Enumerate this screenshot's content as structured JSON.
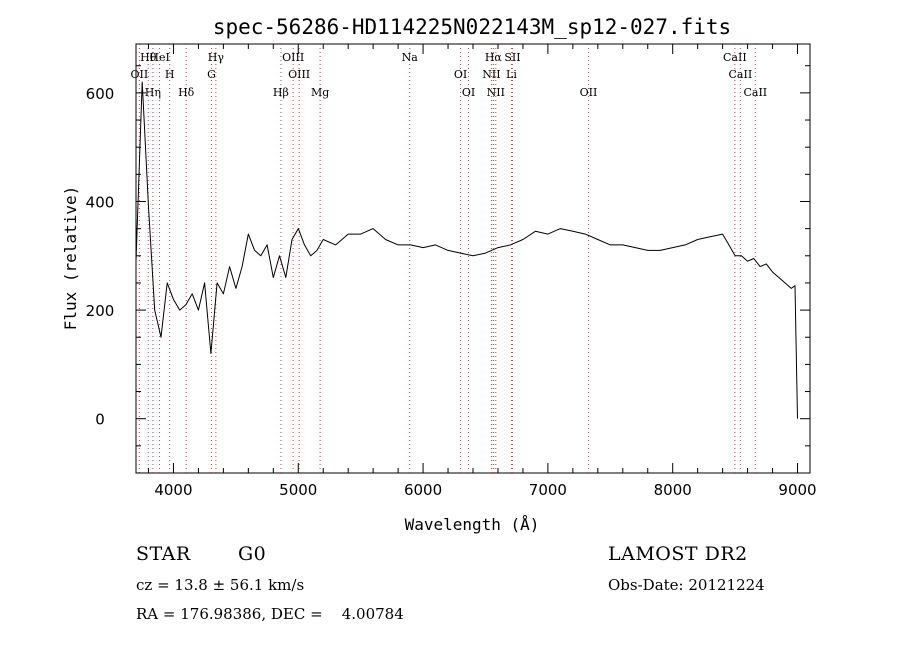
{
  "chart_data": {
    "type": "line",
    "title": "spec-56286-HD114225N022143M_sp12-027.fits",
    "xlabel": "Wavelength (Å)",
    "ylabel": "Flux (relative)",
    "xlim": [
      3700,
      9100
    ],
    "ylim": [
      -100,
      690
    ],
    "x_ticks": [
      4000,
      5000,
      6000,
      7000,
      8000,
      9000
    ],
    "x_tick_labels": [
      "4000",
      "5000",
      "6000",
      "7000",
      "8000",
      "9000"
    ],
    "y_ticks": [
      0,
      200,
      400,
      600
    ],
    "y_tick_labels": [
      "0",
      "200",
      "400",
      "600"
    ],
    "grid": false,
    "series": [
      {
        "color": "#000000",
        "x": [
          3700,
          3750,
          3800,
          3850,
          3900,
          3950,
          4000,
          4050,
          4100,
          4150,
          4200,
          4250,
          4300,
          4350,
          4400,
          4450,
          4500,
          4550,
          4600,
          4650,
          4700,
          4750,
          4800,
          4850,
          4900,
          4950,
          5000,
          5050,
          5100,
          5150,
          5200,
          5300,
          5400,
          5500,
          5600,
          5700,
          5800,
          5900,
          6000,
          6100,
          6200,
          6300,
          6400,
          6500,
          6600,
          6700,
          6800,
          6900,
          7000,
          7100,
          7200,
          7300,
          7400,
          7500,
          7600,
          7700,
          7800,
          7900,
          8000,
          8100,
          8200,
          8300,
          8400,
          8450,
          8500,
          8550,
          8600,
          8650,
          8700,
          8750,
          8800,
          8850,
          8900,
          8950,
          8980,
          9000
        ],
        "y": [
          290,
          620,
          390,
          200,
          150,
          250,
          220,
          200,
          210,
          230,
          200,
          250,
          120,
          250,
          230,
          280,
          240,
          280,
          340,
          310,
          300,
          320,
          260,
          300,
          260,
          330,
          350,
          320,
          300,
          310,
          330,
          320,
          340,
          340,
          350,
          330,
          320,
          320,
          315,
          320,
          310,
          305,
          300,
          305,
          315,
          320,
          330,
          345,
          340,
          350,
          345,
          340,
          330,
          320,
          320,
          315,
          310,
          310,
          315,
          320,
          330,
          335,
          340,
          320,
          300,
          300,
          290,
          295,
          280,
          285,
          270,
          260,
          250,
          240,
          245,
          0
        ]
      }
    ],
    "lines": [
      {
        "label": "Hθ",
        "x": 3798
      },
      {
        "label": "OII",
        "x": 3727
      },
      {
        "label": "Hη",
        "x": 3835
      },
      {
        "label": "HeI",
        "x": 3889
      },
      {
        "label": "H",
        "x": 3970
      },
      {
        "label": "Hδ",
        "x": 4102
      },
      {
        "label": "Hγ",
        "x": 4340
      },
      {
        "label": "G",
        "x": 4305
      },
      {
        "label": "Hβ",
        "x": 4861
      },
      {
        "label": "OIII",
        "x": 4959
      },
      {
        "label": "OIII",
        "x": 5007
      },
      {
        "label": "Mg",
        "x": 5175
      },
      {
        "label": "Na",
        "x": 5893
      },
      {
        "label": "OI",
        "x": 6300
      },
      {
        "label": "OI",
        "x": 6364
      },
      {
        "label": "Hα",
        "x": 6563
      },
      {
        "label": "NII",
        "x": 6548
      },
      {
        "label": "NII",
        "x": 6583
      },
      {
        "label": "SII",
        "x": 6716
      },
      {
        "label": "Li",
        "x": 6708
      },
      {
        "label": "OII",
        "x": 7325
      },
      {
        "label": "CaII",
        "x": 8498
      },
      {
        "label": "CaII",
        "x": 8542
      },
      {
        "label": "CaII",
        "x": 8662
      }
    ]
  },
  "info": {
    "class": "STAR",
    "subclass": "G0",
    "survey": "LAMOST DR2",
    "cz": "cz = 13.8 ± 56.1 km/s",
    "obs_date": "Obs-Date: 20121224",
    "radec": "RA = 176.98386, DEC =    4.00784"
  }
}
